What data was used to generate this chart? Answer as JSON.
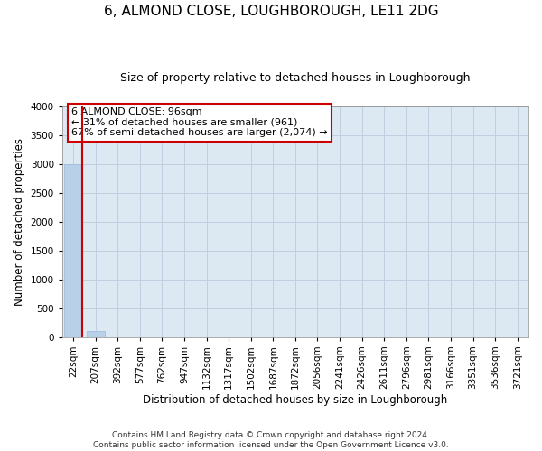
{
  "title": "6, ALMOND CLOSE, LOUGHBOROUGH, LE11 2DG",
  "subtitle": "Size of property relative to detached houses in Loughborough",
  "xlabel": "Distribution of detached houses by size in Loughborough",
  "ylabel": "Number of detached properties",
  "categories": [
    "22sqm",
    "207sqm",
    "392sqm",
    "577sqm",
    "762sqm",
    "947sqm",
    "1132sqm",
    "1317sqm",
    "1502sqm",
    "1687sqm",
    "1872sqm",
    "2056sqm",
    "2241sqm",
    "2426sqm",
    "2611sqm",
    "2796sqm",
    "2981sqm",
    "3166sqm",
    "3351sqm",
    "3536sqm",
    "3721sqm"
  ],
  "values": [
    3000,
    100,
    0,
    0,
    0,
    0,
    0,
    0,
    0,
    0,
    0,
    0,
    0,
    0,
    0,
    0,
    0,
    0,
    0,
    0,
    0
  ],
  "bar_color": "#b8d0e8",
  "bar_edge_color": "#9ab8d8",
  "ylim": [
    0,
    4000
  ],
  "yticks": [
    0,
    500,
    1000,
    1500,
    2000,
    2500,
    3000,
    3500,
    4000
  ],
  "grid_color": "#c0cfe0",
  "background_color": "#dce8f2",
  "annotation_box_text_line1": "6 ALMOND CLOSE: 96sqm",
  "annotation_box_text_line2": "← 31% of detached houses are smaller (961)",
  "annotation_box_text_line3": "67% of semi-detached houses are larger (2,074) →",
  "annotation_box_color": "#cc0000",
  "vline_color": "#cc0000",
  "vline_x_index": 0.42,
  "footer_line1": "Contains HM Land Registry data © Crown copyright and database right 2024.",
  "footer_line2": "Contains public sector information licensed under the Open Government Licence v3.0.",
  "title_fontsize": 11,
  "subtitle_fontsize": 9,
  "axis_label_fontsize": 8.5,
  "tick_fontsize": 7.5,
  "annotation_fontsize": 8,
  "footer_fontsize": 6.5
}
